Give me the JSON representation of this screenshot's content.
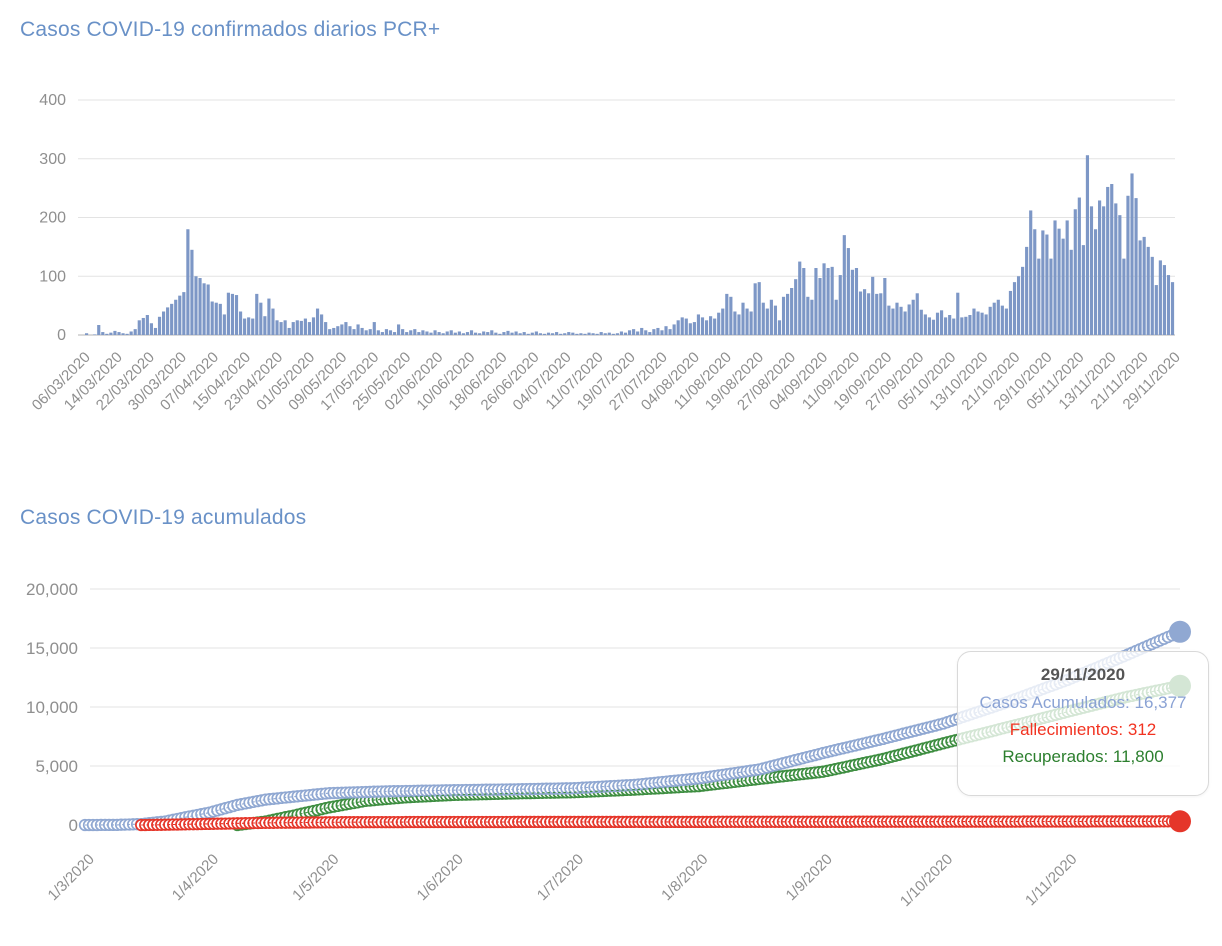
{
  "page": {
    "background": "#ffffff",
    "text_gray": "#8f8f8f",
    "grid_color": "#e3e3e3",
    "axis_line_color": "#b3b3b3"
  },
  "chart_data": [
    {
      "type": "bar",
      "title": "Casos COVID-19 confirmados diarios PCR+",
      "title_color": "#6991c7",
      "bar_color": "#7d97c6",
      "ylim": [
        0,
        400
      ],
      "y_tick_values": [
        0,
        100,
        200,
        300,
        400
      ],
      "y_tick_labels": [
        "0",
        "100",
        "200",
        "300",
        "400"
      ],
      "x_tick_labels": [
        "06/03/2020",
        "14/03/2020",
        "22/03/2020",
        "30/03/2020",
        "07/04/2020",
        "15/04/2020",
        "23/04/2020",
        "01/05/2020",
        "09/05/2020",
        "17/05/2020",
        "25/05/2020",
        "02/06/2020",
        "10/06/2020",
        "18/06/2020",
        "26/06/2020",
        "04/07/2020",
        "11/07/2020",
        "19/07/2020",
        "27/07/2020",
        "04/08/2020",
        "11/08/2020",
        "19/08/2020",
        "27/08/2020",
        "04/09/2020",
        "11/09/2020",
        "19/09/2020",
        "27/09/2020",
        "05/10/2020",
        "13/10/2020",
        "21/10/2020",
        "29/10/2020",
        "05/11/2020",
        "13/11/2020",
        "21/11/2020",
        "29/11/2020"
      ],
      "values": [
        3,
        0,
        1,
        17,
        5,
        2,
        4,
        7,
        5,
        3,
        2,
        6,
        10,
        25,
        29,
        34,
        20,
        12,
        31,
        40,
        47,
        53,
        60,
        67,
        73,
        180,
        145,
        100,
        97,
        88,
        86,
        57,
        55,
        53,
        35,
        72,
        70,
        68,
        40,
        28,
        30,
        28,
        70,
        55,
        32,
        62,
        45,
        25,
        22,
        25,
        12,
        22,
        25,
        24,
        28,
        22,
        30,
        45,
        35,
        22,
        10,
        12,
        15,
        18,
        22,
        15,
        10,
        18,
        12,
        8,
        10,
        22,
        8,
        5,
        10,
        8,
        5,
        18,
        10,
        5,
        8,
        10,
        5,
        8,
        6,
        4,
        8,
        5,
        3,
        6,
        8,
        4,
        6,
        3,
        5,
        8,
        4,
        3,
        6,
        5,
        8,
        4,
        2,
        5,
        7,
        4,
        6,
        3,
        5,
        2,
        4,
        6,
        3,
        2,
        4,
        3,
        5,
        2,
        3,
        5,
        4,
        2,
        3,
        2,
        4,
        3,
        2,
        5,
        3,
        4,
        2,
        3,
        6,
        4,
        8,
        10,
        6,
        12,
        8,
        5,
        10,
        12,
        8,
        15,
        10,
        18,
        25,
        30,
        28,
        20,
        22,
        35,
        30,
        25,
        32,
        28,
        38,
        45,
        70,
        65,
        40,
        35,
        55,
        45,
        40,
        88,
        90,
        55,
        45,
        60,
        50,
        25,
        65,
        70,
        80,
        95,
        125,
        114,
        65,
        60,
        114,
        97,
        122,
        114,
        116,
        60,
        102,
        170,
        148,
        111,
        114,
        74,
        78,
        71,
        99,
        70,
        71,
        97,
        50,
        45,
        55,
        48,
        40,
        52,
        60,
        71,
        43,
        35,
        30,
        26,
        38,
        42,
        30,
        34,
        28,
        72,
        30,
        31,
        34,
        45,
        40,
        38,
        35,
        48,
        55,
        60,
        50,
        45,
        75,
        90,
        100,
        116,
        150,
        212,
        180,
        130,
        178,
        171,
        130,
        195,
        181,
        164,
        195,
        145,
        214,
        234,
        153,
        306,
        219,
        180,
        229,
        219,
        252,
        257,
        224,
        204,
        130,
        237,
        275,
        233,
        161,
        167,
        150,
        133,
        85,
        127,
        119,
        102,
        90
      ]
    },
    {
      "type": "line",
      "title": "Casos COVID-19 acumulados",
      "title_color": "#6991c7",
      "ylim": [
        0,
        20000
      ],
      "y_tick_values": [
        0,
        5000,
        10000,
        15000,
        20000
      ],
      "y_tick_labels": [
        "0",
        "5,000",
        "10,000",
        "15,000",
        "20,000"
      ],
      "x_ticks": [
        {
          "label": "1/3/2020",
          "day": 0
        },
        {
          "label": "1/4/2020",
          "day": 31
        },
        {
          "label": "1/5/2020",
          "day": 61
        },
        {
          "label": "1/6/2020",
          "day": 92
        },
        {
          "label": "1/7/2020",
          "day": 122
        },
        {
          "label": "1/8/2020",
          "day": 153
        },
        {
          "label": "1/9/2020",
          "day": 184
        },
        {
          "label": "1/10/2020",
          "day": 214
        },
        {
          "label": "1/11/2020",
          "day": 245
        }
      ],
      "x_total_days": 273,
      "series": [
        {
          "name": "Recuperados",
          "color": "#3e8e41",
          "final_value": 11800,
          "anchors": [
            [
              38,
              0
            ],
            [
              45,
              300
            ],
            [
              52,
              800
            ],
            [
              61,
              1500
            ],
            [
              70,
              2050
            ],
            [
              80,
              2350
            ],
            [
              92,
              2550
            ],
            [
              107,
              2680
            ],
            [
              122,
              2780
            ],
            [
              137,
              3000
            ],
            [
              153,
              3300
            ],
            [
              168,
              3900
            ],
            [
              184,
              4515
            ],
            [
              199,
              5600
            ],
            [
              214,
              6920
            ],
            [
              229,
              8200
            ],
            [
              245,
              9600
            ],
            [
              259,
              10800
            ],
            [
              273,
              11800
            ]
          ]
        },
        {
          "name": "Casos Acumulados",
          "color": "#90a8d2",
          "final_value": 16377,
          "anchors": [
            [
              0,
              0
            ],
            [
              8,
              10
            ],
            [
              14,
              80
            ],
            [
              20,
              300
            ],
            [
              25,
              650
            ],
            [
              31,
              1050
            ],
            [
              38,
              1700
            ],
            [
              45,
              2150
            ],
            [
              52,
              2400
            ],
            [
              61,
              2700
            ],
            [
              75,
              2850
            ],
            [
              92,
              2950
            ],
            [
              107,
              3020
            ],
            [
              122,
              3120
            ],
            [
              137,
              3400
            ],
            [
              153,
              3950
            ],
            [
              168,
              4700
            ],
            [
              184,
              6100
            ],
            [
              199,
              7300
            ],
            [
              214,
              8600
            ],
            [
              229,
              10300
            ],
            [
              245,
              12300
            ],
            [
              259,
              14300
            ],
            [
              273,
              16377
            ]
          ]
        },
        {
          "name": "Fallecimientos",
          "color": "#e5362a",
          "final_value": 312,
          "anchors": [
            [
              14,
              0
            ],
            [
              20,
              25
            ],
            [
              25,
              60
            ],
            [
              31,
              95
            ],
            [
              45,
              185
            ],
            [
              61,
              230
            ],
            [
              75,
              248
            ],
            [
              92,
              256
            ],
            [
              122,
              261
            ],
            [
              153,
              266
            ],
            [
              184,
              273
            ],
            [
              214,
              283
            ],
            [
              245,
              298
            ],
            [
              273,
              312
            ]
          ]
        }
      ],
      "tooltip": {
        "date": "29/11/2020",
        "lines": [
          {
            "text": "Casos Acumulados: 16,377",
            "color": "#8aa2d4"
          },
          {
            "text": "Fallecimientos: 312",
            "color": "#f23321"
          },
          {
            "text": "Recuperados: 11,800",
            "color": "#2c7f2e"
          }
        ]
      }
    }
  ]
}
